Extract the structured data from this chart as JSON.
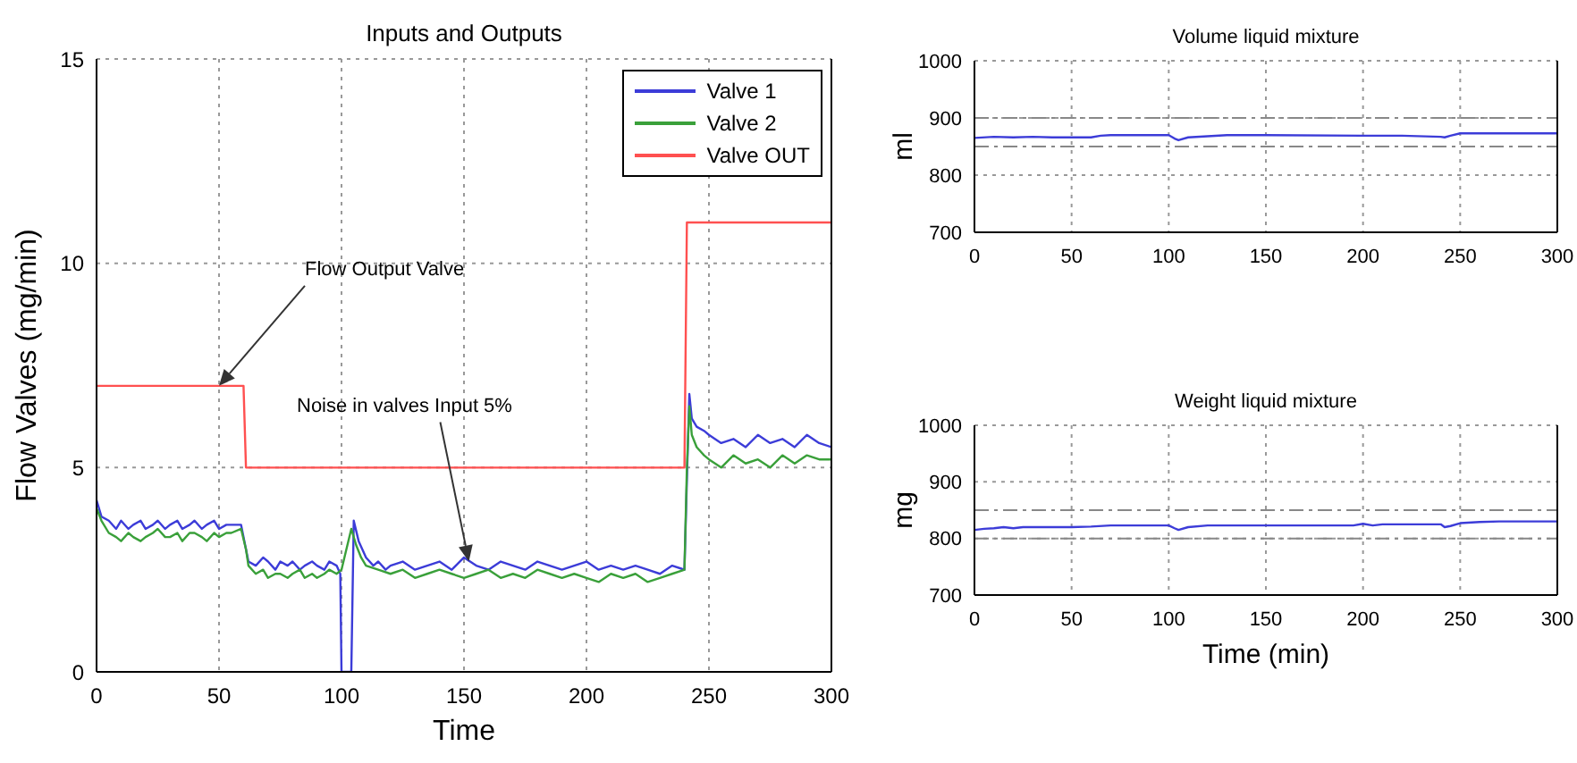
{
  "chart_data": [
    {
      "type": "line",
      "title": "Inputs and Outputs",
      "xlabel": "Time",
      "ylabel": "Flow Valves (mg/min)",
      "xlim": [
        0,
        300
      ],
      "xticks": [
        0,
        50,
        100,
        150,
        200,
        250,
        300
      ],
      "ylim": [
        0,
        15
      ],
      "yticks": [
        0,
        5,
        10,
        15
      ],
      "grid": true,
      "legend": "top right",
      "annotations": [
        {
          "text": "Flow Output Valve",
          "x": 50,
          "y": 7
        },
        {
          "text": "Noise in valves Input 5%",
          "x": 152,
          "y": 2.7
        }
      ],
      "series": [
        {
          "name": "Valve 1",
          "color": "#3c3cd8",
          "x": [
            0,
            2,
            5,
            8,
            10,
            13,
            15,
            18,
            20,
            23,
            25,
            28,
            30,
            33,
            35,
            38,
            40,
            43,
            45,
            48,
            50,
            53,
            55,
            59,
            61,
            62,
            65,
            68,
            70,
            73,
            75,
            78,
            80,
            83,
            85,
            88,
            90,
            93,
            95,
            98,
            99.5,
            100,
            104,
            105,
            107,
            110,
            113,
            115,
            118,
            120,
            125,
            130,
            135,
            140,
            145,
            150,
            155,
            160,
            165,
            170,
            175,
            180,
            185,
            190,
            195,
            200,
            205,
            210,
            215,
            220,
            225,
            230,
            235,
            240,
            241,
            242,
            243,
            245,
            248,
            250,
            255,
            260,
            265,
            270,
            275,
            280,
            285,
            290,
            295,
            300
          ],
          "values": [
            4.2,
            3.8,
            3.7,
            3.5,
            3.7,
            3.5,
            3.6,
            3.7,
            3.5,
            3.6,
            3.7,
            3.5,
            3.6,
            3.7,
            3.5,
            3.6,
            3.7,
            3.5,
            3.6,
            3.7,
            3.5,
            3.6,
            3.6,
            3.6,
            3.0,
            2.7,
            2.6,
            2.8,
            2.7,
            2.5,
            2.7,
            2.6,
            2.7,
            2.5,
            2.6,
            2.7,
            2.6,
            2.5,
            2.7,
            2.6,
            2.4,
            0,
            0,
            3.7,
            3.2,
            2.8,
            2.6,
            2.7,
            2.5,
            2.6,
            2.7,
            2.5,
            2.6,
            2.7,
            2.5,
            2.8,
            2.6,
            2.5,
            2.7,
            2.6,
            2.5,
            2.7,
            2.6,
            2.5,
            2.6,
            2.7,
            2.5,
            2.6,
            2.5,
            2.6,
            2.5,
            2.4,
            2.6,
            2.5,
            4.7,
            6.8,
            6.2,
            6.0,
            5.9,
            5.8,
            5.6,
            5.7,
            5.5,
            5.8,
            5.6,
            5.7,
            5.5,
            5.8,
            5.6,
            5.5
          ]
        },
        {
          "name": "Valve 2",
          "color": "#3aa03a",
          "x": [
            0,
            2,
            5,
            8,
            10,
            13,
            15,
            18,
            20,
            23,
            25,
            28,
            30,
            33,
            35,
            38,
            40,
            43,
            45,
            48,
            50,
            53,
            55,
            59,
            61,
            62,
            65,
            68,
            70,
            73,
            75,
            78,
            80,
            83,
            85,
            88,
            90,
            93,
            95,
            98,
            100,
            102,
            104,
            106,
            108,
            110,
            115,
            120,
            125,
            130,
            135,
            140,
            145,
            150,
            155,
            160,
            165,
            170,
            175,
            180,
            185,
            190,
            195,
            200,
            205,
            210,
            215,
            220,
            225,
            230,
            235,
            240,
            241,
            242,
            243,
            245,
            248,
            250,
            255,
            260,
            265,
            270,
            275,
            280,
            285,
            290,
            295,
            300
          ],
          "values": [
            4.0,
            3.7,
            3.4,
            3.3,
            3.2,
            3.4,
            3.3,
            3.2,
            3.3,
            3.4,
            3.5,
            3.3,
            3.3,
            3.4,
            3.2,
            3.4,
            3.4,
            3.3,
            3.2,
            3.4,
            3.3,
            3.4,
            3.4,
            3.5,
            3.0,
            2.6,
            2.4,
            2.5,
            2.3,
            2.4,
            2.4,
            2.3,
            2.4,
            2.5,
            2.3,
            2.4,
            2.3,
            2.4,
            2.5,
            2.4,
            2.5,
            3.0,
            3.5,
            3.1,
            2.8,
            2.6,
            2.5,
            2.4,
            2.5,
            2.3,
            2.4,
            2.5,
            2.4,
            2.3,
            2.4,
            2.5,
            2.3,
            2.4,
            2.3,
            2.5,
            2.4,
            2.3,
            2.4,
            2.3,
            2.2,
            2.4,
            2.3,
            2.4,
            2.2,
            2.3,
            2.4,
            2.5,
            5.0,
            6.5,
            5.8,
            5.5,
            5.3,
            5.2,
            5.0,
            5.3,
            5.1,
            5.2,
            5.0,
            5.3,
            5.1,
            5.3,
            5.2,
            5.2
          ]
        },
        {
          "name": "Valve OUT",
          "color": "#ff5050",
          "x": [
            0,
            60,
            61,
            240,
            241,
            300
          ],
          "values": [
            7,
            7,
            5,
            5,
            11,
            11
          ]
        }
      ]
    },
    {
      "type": "line",
      "title": "Volume liquid mixture",
      "ylabel": "ml",
      "xlim": [
        0,
        300
      ],
      "xticks": [
        0,
        50,
        100,
        150,
        200,
        250,
        300
      ],
      "ylim": [
        700,
        1000
      ],
      "yticks": [
        700,
        800,
        900,
        1000
      ],
      "grid": true,
      "ref_lines": [
        {
          "axis": "y",
          "value": 900,
          "color": "#888888",
          "line_style": "dashed"
        },
        {
          "axis": "y",
          "value": 850,
          "color": "#888888",
          "line_style": "dashed"
        }
      ],
      "series": [
        {
          "color": "#3c3cd8",
          "x": [
            0,
            10,
            20,
            30,
            40,
            50,
            60,
            65,
            70,
            80,
            100,
            103,
            105,
            110,
            120,
            130,
            150,
            200,
            220,
            240,
            242,
            245,
            250,
            300
          ],
          "values": [
            865,
            867,
            866,
            867,
            866,
            866,
            866,
            869,
            870,
            870,
            870,
            864,
            861,
            866,
            868,
            870,
            870,
            869,
            869,
            867,
            866,
            869,
            873,
            873
          ]
        }
      ]
    },
    {
      "type": "line",
      "title": "Weight liquid mixture",
      "xlabel": "Time (min)",
      "ylabel": "mg",
      "xlim": [
        0,
        300
      ],
      "xticks": [
        0,
        50,
        100,
        150,
        200,
        250,
        300
      ],
      "ylim": [
        700,
        1000
      ],
      "yticks": [
        700,
        800,
        900,
        1000
      ],
      "grid": true,
      "ref_lines": [
        {
          "axis": "y",
          "value": 850,
          "color": "#888888",
          "line_style": "dashed"
        },
        {
          "axis": "y",
          "value": 800,
          "color": "#888888",
          "line_style": "dashed"
        }
      ],
      "series": [
        {
          "color": "#3c3cd8",
          "x": [
            0,
            5,
            10,
            15,
            20,
            25,
            30,
            50,
            60,
            70,
            80,
            100,
            103,
            105,
            110,
            120,
            150,
            195,
            200,
            205,
            210,
            220,
            240,
            242,
            245,
            250,
            260,
            270,
            300
          ],
          "values": [
            815,
            817,
            818,
            820,
            818,
            820,
            820,
            820,
            821,
            823,
            823,
            823,
            818,
            815,
            820,
            823,
            823,
            823,
            826,
            823,
            825,
            825,
            825,
            820,
            822,
            827,
            829,
            830,
            830
          ]
        }
      ]
    }
  ]
}
